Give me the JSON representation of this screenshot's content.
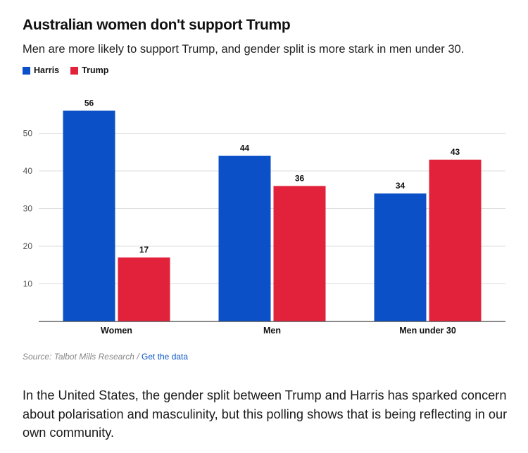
{
  "header": {
    "title": "Australian women don't support Trump",
    "subtitle": "Men are more likely to support Trump, and gender split is more stark in men under 30."
  },
  "legend": [
    {
      "label": "Harris",
      "color": "#0b50c6"
    },
    {
      "label": "Trump",
      "color": "#e2213a"
    }
  ],
  "chart_data": {
    "type": "bar",
    "categories": [
      "Women",
      "Men",
      "Men under 30"
    ],
    "series": [
      {
        "name": "Harris",
        "values": [
          56,
          44,
          34
        ],
        "color": "#0b50c6"
      },
      {
        "name": "Trump",
        "values": [
          17,
          36,
          43
        ],
        "color": "#e2213a"
      }
    ],
    "ylim": [
      0,
      60
    ],
    "yticks": [
      10,
      20,
      30,
      40,
      50
    ],
    "grid": true,
    "legend_position": "top-left"
  },
  "footer": {
    "source": "Source: Talbot Mills Research",
    "separator": "/",
    "link": "Get the data"
  },
  "body_text": "In the United States, the gender split between Trump and Harris has sparked concern about polarisation and masculinity, but this polling shows that is being reflecting in our own community."
}
